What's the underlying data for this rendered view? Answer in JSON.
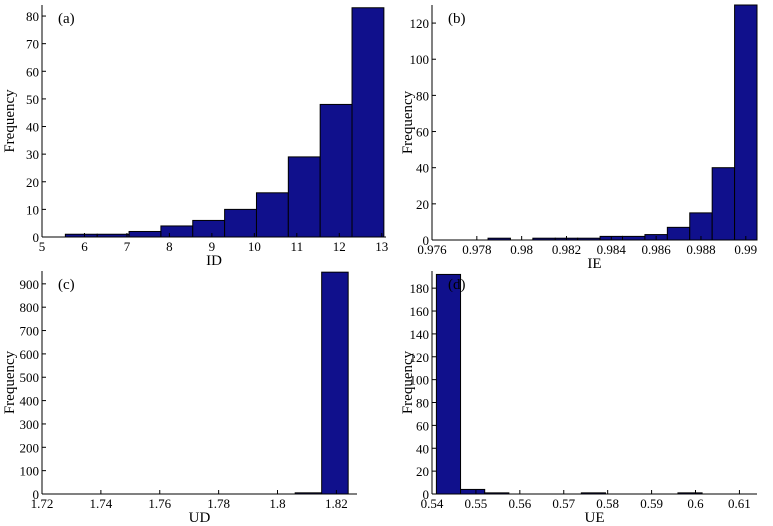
{
  "chart_data": [
    {
      "type": "histogram",
      "title": "(a)",
      "xlabel": "ID",
      "ylabel": "Frequency",
      "color": "#10108c",
      "bins": [
        5.55,
        6.3,
        7.05,
        7.8,
        8.55,
        9.3,
        10.05,
        10.8,
        11.55,
        12.3,
        13.05
      ],
      "counts": [
        1,
        1,
        2,
        4,
        6,
        10,
        16,
        29,
        48,
        83
      ],
      "xlim": [
        5,
        13.1
      ],
      "ylim": [
        0,
        84
      ],
      "xticks": [
        5,
        6,
        7,
        8,
        9,
        10,
        11,
        12,
        13
      ],
      "yticks": [
        0,
        10,
        20,
        30,
        40,
        50,
        60,
        70,
        80
      ]
    },
    {
      "type": "histogram",
      "title": "(b)",
      "xlabel": "IE",
      "ylabel": "Frequency",
      "color": "#10108c",
      "bins": [
        0.9785,
        0.9795,
        0.9805,
        0.9815,
        0.9825,
        0.9835,
        0.9845,
        0.9855,
        0.9865,
        0.9875,
        0.9885,
        0.9895,
        0.9905
      ],
      "counts": [
        1,
        0,
        1,
        1,
        1,
        2,
        2,
        3,
        7,
        15,
        40,
        130
      ],
      "xlim": [
        0.976,
        0.9905
      ],
      "ylim": [
        0,
        130
      ],
      "xticks": [
        0.976,
        0.978,
        0.98,
        0.982,
        0.984,
        0.986,
        0.988,
        0.99
      ],
      "yticks": [
        0,
        20,
        40,
        60,
        80,
        100,
        120
      ]
    },
    {
      "type": "histogram",
      "title": "(c)",
      "xlabel": "UD",
      "ylabel": "Frequency",
      "color": "#10108c",
      "bins": [
        1.806,
        1.815,
        1.824
      ],
      "counts": [
        5,
        950
      ],
      "xlim": [
        1.72,
        1.827
      ],
      "ylim": [
        0,
        955
      ],
      "xticks": [
        1.72,
        1.74,
        1.76,
        1.78,
        1.8,
        1.82
      ],
      "yticks": [
        0,
        100,
        200,
        300,
        400,
        500,
        600,
        700,
        800,
        900
      ]
    },
    {
      "type": "histogram",
      "title": "(d)",
      "xlabel": "UE",
      "ylabel": "Frequency",
      "color": "#10108c",
      "bins": [
        0.541,
        0.5465,
        0.552,
        0.5575,
        0.563,
        0.5685,
        0.574,
        0.5795,
        0.585,
        0.5905,
        0.596,
        0.6015,
        0.607
      ],
      "counts": [
        192,
        4,
        1,
        0,
        0,
        0,
        1,
        0,
        0,
        0,
        1,
        0
      ],
      "xlim": [
        0.54,
        0.614
      ],
      "ylim": [
        0,
        195
      ],
      "xticks": [
        0.54,
        0.55,
        0.56,
        0.57,
        0.58,
        0.59,
        0.6,
        0.61
      ],
      "yticks": [
        0,
        20,
        40,
        60,
        80,
        100,
        120,
        140,
        160,
        180
      ]
    }
  ]
}
